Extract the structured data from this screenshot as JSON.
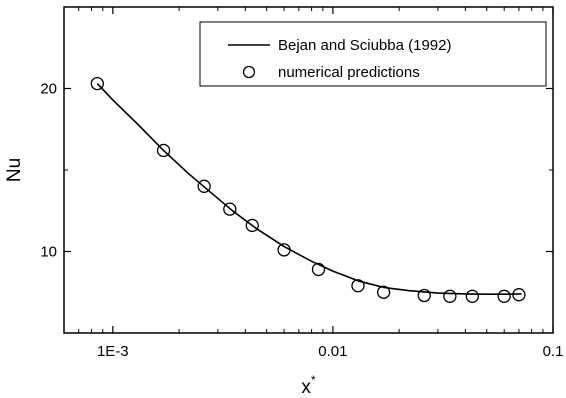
{
  "chart_data": {
    "type": "scatter",
    "title": "",
    "xlabel": "x",
    "xlabel_superscript": "*",
    "ylabel": "Nu",
    "x_scale": "log",
    "xlim": [
      0.0006,
      0.1
    ],
    "ylim": [
      5,
      25
    ],
    "x_ticks": [
      {
        "value": 0.001,
        "label": "1E-3"
      },
      {
        "value": 0.01,
        "label": "0.01"
      },
      {
        "value": 0.1,
        "label": "0.1"
      }
    ],
    "y_ticks": [
      {
        "value": 10,
        "label": "10"
      },
      {
        "value": 20,
        "label": "20"
      }
    ],
    "grid": false,
    "legend_position": "top-right",
    "series": [
      {
        "name": "Bejan and Sciubba (1992)",
        "kind": "line",
        "color": "#000000",
        "x": [
          0.00085,
          0.001,
          0.0013,
          0.0017,
          0.0022,
          0.0028,
          0.0035,
          0.0045,
          0.006,
          0.008,
          0.01,
          0.013,
          0.017,
          0.022,
          0.03,
          0.04,
          0.05,
          0.06,
          0.072
        ],
        "y": [
          20.3,
          19.3,
          17.8,
          16.2,
          14.8,
          13.6,
          12.5,
          11.4,
          10.3,
          9.4,
          8.8,
          8.2,
          7.8,
          7.6,
          7.45,
          7.4,
          7.38,
          7.38,
          7.4
        ]
      },
      {
        "name": "numerical predictions",
        "kind": "scatter",
        "marker": "open-circle",
        "color": "#000000",
        "x": [
          0.00085,
          0.0017,
          0.0026,
          0.0034,
          0.0043,
          0.006,
          0.0086,
          0.013,
          0.017,
          0.026,
          0.034,
          0.043,
          0.06,
          0.07
        ],
        "y": [
          20.3,
          16.2,
          14.0,
          12.6,
          11.6,
          10.1,
          8.9,
          7.9,
          7.5,
          7.3,
          7.25,
          7.25,
          7.25,
          7.35
        ]
      }
    ]
  }
}
